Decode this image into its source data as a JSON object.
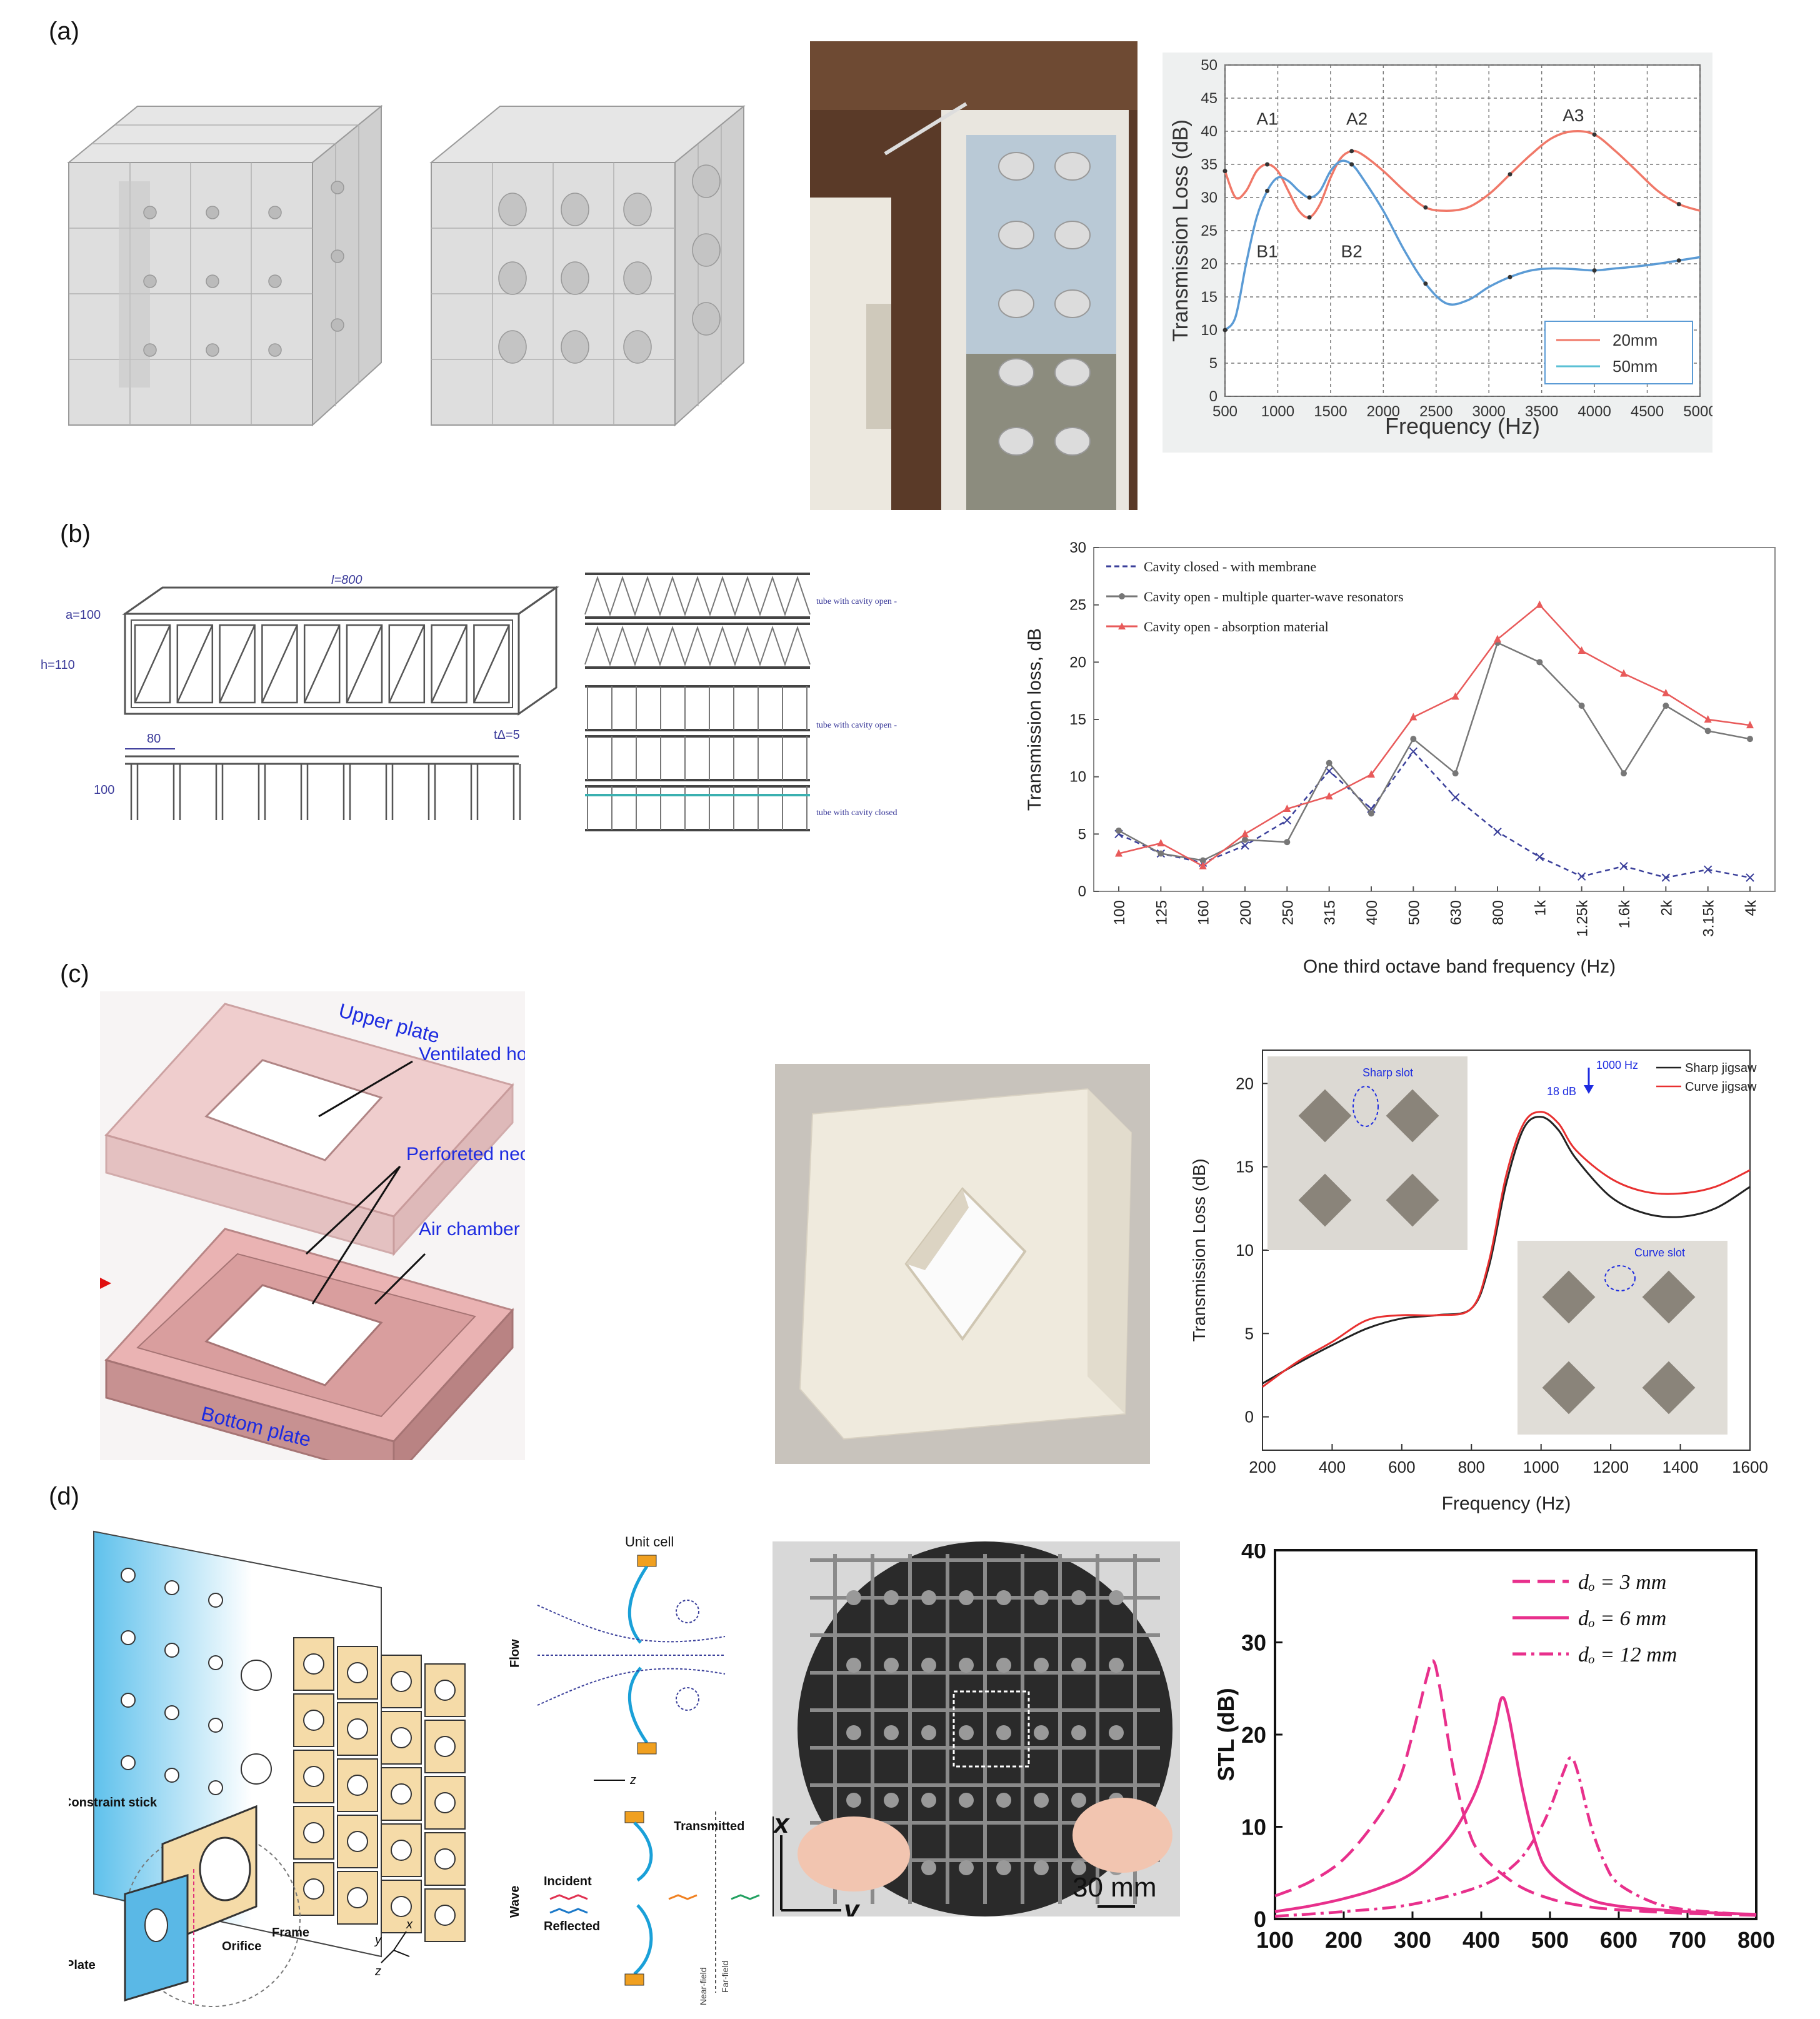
{
  "panels": {
    "a": {
      "label": "(a)",
      "chart_data": {
        "type": "line",
        "xlabel": "Frequency (Hz)",
        "ylabel": "Transmission Loss (dB)",
        "xlim": [
          500,
          5000
        ],
        "ylim": [
          0,
          50
        ],
        "xticks": [
          "500",
          "1000",
          "1500",
          "2000",
          "2500",
          "3000",
          "3500",
          "4000",
          "4500",
          "5000"
        ],
        "yticks": [
          "0",
          "5",
          "10",
          "15",
          "20",
          "25",
          "30",
          "35",
          "40",
          "45",
          "50"
        ],
        "grid": true,
        "legend_position": "bottom-right",
        "annotations": [
          "A1",
          "A2",
          "A3",
          "B1",
          "B2"
        ],
        "series": [
          {
            "name": "20mm",
            "color": "#f07868",
            "x": [
              500,
              600,
              700,
              800,
              900,
              1000,
              1100,
              1200,
              1300,
              1400,
              1500,
              1600,
              1700,
              1800,
              2000,
              2200,
              2400,
              2600,
              2800,
              3000,
              3200,
              3400,
              3600,
              3800,
              4000,
              4200,
              4400,
              4600,
              4800,
              5000
            ],
            "y": [
              34,
              30,
              31,
              34,
              35,
              34,
              31,
              28,
              27,
              29,
              33,
              36,
              37,
              36.5,
              34,
              31,
              28.5,
              28,
              28.5,
              30.5,
              33.5,
              36.5,
              39,
              40,
              39.5,
              37,
              34,
              31,
              29,
              28
            ]
          },
          {
            "name": "50mm",
            "color": "#5b9bd5",
            "x": [
              500,
              600,
              700,
              800,
              900,
              1000,
              1100,
              1200,
              1300,
              1400,
              1500,
              1600,
              1700,
              1800,
              2000,
              2200,
              2400,
              2600,
              2800,
              3000,
              3200,
              3400,
              3600,
              3800,
              4000,
              4200,
              4400,
              4600,
              4800,
              5000
            ],
            "y": [
              10,
              12,
              20,
              27,
              31,
              33,
              32.5,
              31,
              30,
              31,
              34,
              35.5,
              35,
              33,
              28,
              22,
              17,
              14,
              14.5,
              16.5,
              18,
              19,
              19.3,
              19.2,
              19,
              19.3,
              19.6,
              20,
              20.5,
              21
            ]
          }
        ]
      }
    },
    "b": {
      "label": "(b)",
      "schematic": {
        "dim_l": "l=800",
        "dim_a": "a=100",
        "dim_h": "h=110",
        "dim_80": "80",
        "dim_100": "100",
        "dim_t": "tΔ=5"
      },
      "tube_labels": [
        "tube with cavity open - filled with absorption material",
        "tube with cavity open - with multiple",
        "tube with cavity closed - with membrane"
      ],
      "chart_data": {
        "type": "line",
        "xlabel": "One third octave band frequency (Hz)",
        "ylabel": "Transmission loss, dB",
        "ylim": [
          0,
          30
        ],
        "categories": [
          "100",
          "125",
          "160",
          "200",
          "250",
          "315",
          "400",
          "500",
          "630",
          "800",
          "1k",
          "1.25k",
          "1.6k",
          "2k",
          "3.15k",
          "4k"
        ],
        "yticks": [
          "0",
          "5",
          "10",
          "15",
          "20",
          "25",
          "30"
        ],
        "legend_position": "top-left",
        "series": [
          {
            "name": "Cavity closed - with membrane",
            "color": "#3a3f9a",
            "values": [
              5,
              3.3,
              2.5,
              4,
              6.2,
              10.5,
              7.2,
              12.2,
              8.2,
              5.2,
              3,
              1.3,
              2.2,
              1.2,
              1.9,
              1.2
            ]
          },
          {
            "name": "Cavity open - multiple quarter-wave resonators",
            "color": "#777777",
            "values": [
              5.3,
              3.3,
              2.7,
              4.5,
              4.3,
              11.2,
              6.8,
              13.3,
              10.3,
              21.7,
              20,
              16.2,
              10.3,
              16.2,
              14,
              13.3
            ]
          },
          {
            "name": "Cavity open - absorption material",
            "color": "#e85a5a",
            "values": [
              3.3,
              4.2,
              2.2,
              5,
              7.2,
              8.3,
              10.2,
              15.2,
              17,
              22,
              25,
              21,
              19,
              17.3,
              15,
              14.5
            ]
          }
        ]
      }
    },
    "c": {
      "label": "(c)",
      "diagram_labels": {
        "upper": "Upper plate",
        "vent": "Ventilated hole",
        "perf": "Perforeted neck hole",
        "air": "Air chamber (cavity)",
        "bottom": "Bottom plate"
      },
      "chart_data": {
        "type": "line",
        "xlabel": "Frequency (Hz)",
        "ylabel": "Transmission Loss (dB)",
        "xlim": [
          200,
          1600
        ],
        "ylim": [
          -2,
          22
        ],
        "xticks": [
          "200",
          "400",
          "600",
          "800",
          "1000",
          "1200",
          "1400",
          "1600"
        ],
        "yticks": [
          "0",
          "5",
          "10",
          "15",
          "20"
        ],
        "legend_position": "top-right",
        "annotations": [
          "1000 Hz",
          "18 dB",
          "Sharp slot",
          "Curve slot"
        ],
        "series": [
          {
            "name": "Sharp jigsaw",
            "color": "#222222",
            "x": [
              200,
              300,
              400,
              500,
              600,
              700,
              800,
              850,
              900,
              950,
              1000,
              1050,
              1100,
              1200,
              1300,
              1400,
              1500,
              1600
            ],
            "y": [
              2,
              3.2,
              4.3,
              5.3,
              5.9,
              6.1,
              6.5,
              9,
              14,
              17.3,
              18,
              17.2,
              15.5,
              13.2,
              12.2,
              12,
              12.5,
              13.8
            ]
          },
          {
            "name": "Curve jigsaw",
            "color": "#e83030",
            "x": [
              200,
              300,
              400,
              500,
              600,
              700,
              800,
              850,
              900,
              950,
              1000,
              1050,
              1100,
              1200,
              1300,
              1400,
              1500,
              1600
            ],
            "y": [
              1.8,
              3.3,
              4.5,
              5.8,
              6.1,
              6.1,
              6.5,
              9.3,
              14.5,
              17.6,
              18.3,
              17.6,
              16,
              14.3,
              13.5,
              13.4,
              13.8,
              14.8
            ]
          }
        ]
      }
    },
    "d": {
      "label": "(d)",
      "diagram_labels": {
        "constraint": "Constraint stick",
        "frame": "Frame",
        "orifice": "Orifice",
        "plate": "Plate",
        "unit": "Unit cell",
        "flow": "Flow",
        "wave": "Wave",
        "z": "z",
        "transmitted": "Transmitted",
        "incident": "Incident",
        "reflected": "Reflected",
        "near": "Near-field",
        "far": "Far-field",
        "ax_x": "x",
        "ax_y": "y",
        "ax_z": "z",
        "scale": "30 mm",
        "photo_x": "x",
        "photo_y": "y"
      },
      "chart_data": {
        "type": "line",
        "ylabel": "STL (dB)",
        "xlim": [
          100,
          800
        ],
        "ylim": [
          0,
          40
        ],
        "xticks": [
          "100",
          "200",
          "300",
          "400",
          "500",
          "600",
          "700",
          "800"
        ],
        "yticks": [
          "0",
          "10",
          "20",
          "30",
          "40"
        ],
        "legend_position": "top-right",
        "series": [
          {
            "name": "dₒ = 3 mm",
            "color": "#e8308c",
            "dash": "long",
            "x": [
              100,
              150,
              200,
              250,
              280,
              300,
              320,
              330,
              340,
              360,
              380,
              400,
              450,
              500,
              550,
              600,
              700,
              800
            ],
            "y": [
              2.5,
              4,
              6.5,
              11,
              15,
              20,
              26,
              28,
              25,
              16,
              10,
              7,
              3.8,
              2.2,
              1.4,
              1,
              0.6,
              0.4
            ]
          },
          {
            "name": "dₒ = 6 mm",
            "color": "#e8308c",
            "dash": "solid",
            "x": [
              100,
              150,
              200,
              250,
              300,
              350,
              380,
              400,
              420,
              430,
              440,
              460,
              480,
              500,
              550,
              600,
              700,
              800
            ],
            "y": [
              0.8,
              1.4,
              2.2,
              3.3,
              5,
              8.5,
              12,
              15.5,
              21,
              24,
              22,
              14,
              8,
              5,
              2.4,
              1.4,
              0.8,
              0.5
            ]
          },
          {
            "name": "dₒ = 12 mm",
            "color": "#e8308c",
            "dash": "dashdot",
            "x": [
              100,
              200,
              300,
              400,
              450,
              480,
              500,
              520,
              530,
              540,
              560,
              580,
              600,
              650,
              700,
              800
            ],
            "y": [
              0.3,
              0.8,
              1.6,
              3.6,
              6,
              9,
              12,
              16,
              17.5,
              16,
              10,
              6,
              3.8,
              1.8,
              1,
              0.4
            ]
          }
        ]
      }
    }
  }
}
